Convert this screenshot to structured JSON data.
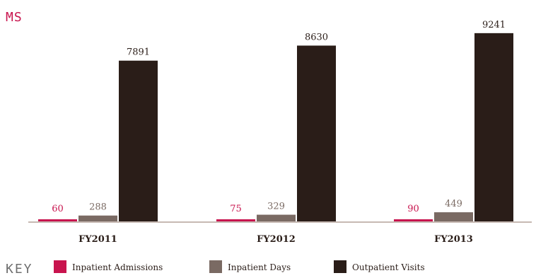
{
  "header": {
    "ms_label": "MS"
  },
  "legend": {
    "key_label": "KEY"
  },
  "chart_data": {
    "type": "bar",
    "categories": [
      "FY2011",
      "FY2012",
      "FY2013"
    ],
    "series": [
      {
        "name": "Inpatient Admissions",
        "values": [
          60,
          75,
          90
        ],
        "color": "#c8144e"
      },
      {
        "name": "Inpatient Days",
        "values": [
          288,
          329,
          449
        ],
        "color": "#7a6a63"
      },
      {
        "name": "Outpatient Visits",
        "values": [
          7891,
          8630,
          9241
        ],
        "color": "#2a1d18"
      }
    ],
    "ylim": [
      0,
      10000
    ],
    "grid": false,
    "legend_placement": "bottom-left",
    "value_label_colors": [
      "#c8144e",
      "#7a6a63",
      "#2a1d18"
    ]
  }
}
